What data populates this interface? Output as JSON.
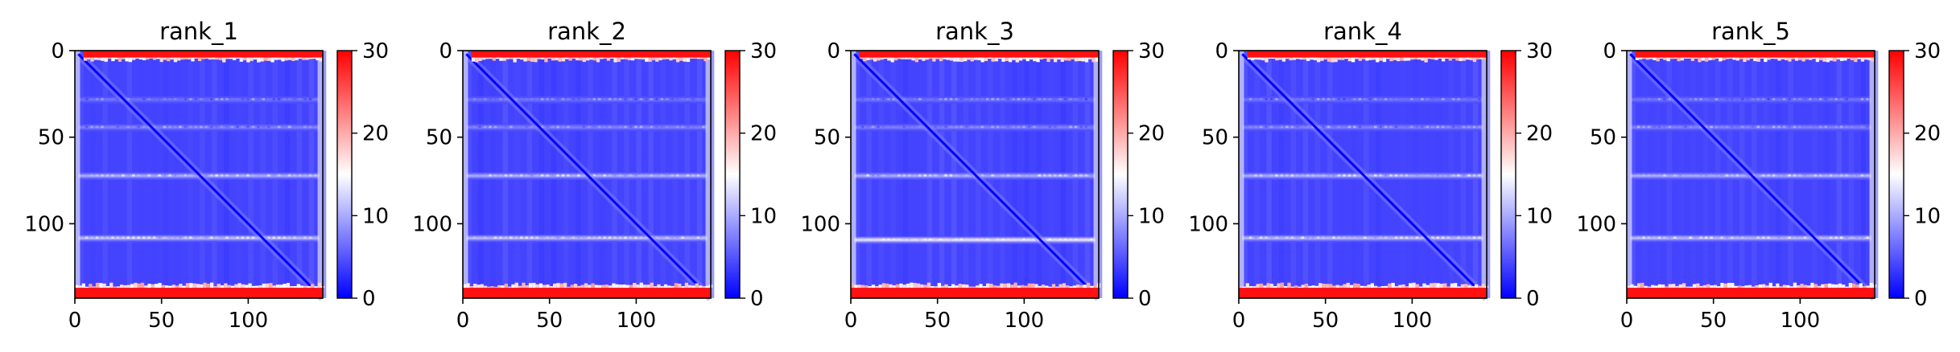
{
  "figure": {
    "colormap": "bwr",
    "colormap_stops": [
      "#0000ff",
      "#ffffff",
      "#ff0000"
    ]
  },
  "chart_data": [
    {
      "type": "heatmap",
      "title": "rank_1",
      "xlabel": "",
      "ylabel": "",
      "x_ticks": [
        0,
        50,
        100
      ],
      "y_ticks": [
        0,
        50,
        100
      ],
      "xlim": [
        0,
        143
      ],
      "ylim": [
        143,
        0
      ],
      "matrix_size": 143,
      "colorbar": {
        "min": 0,
        "max": 30,
        "ticks": [
          0,
          10,
          20,
          30
        ]
      },
      "features": {
        "diagonal_value": 0,
        "background_value": 4,
        "top_edge_rows": [
          0,
          4
        ],
        "top_edge_value": 29,
        "bottom_edge_rows": [
          137,
          143
        ],
        "bottom_edge_value": 29,
        "bright_bands": [
          {
            "row": 28,
            "value": 7
          },
          {
            "row": 44,
            "value": 8
          },
          {
            "row": 72,
            "value": 11
          },
          {
            "row": 108,
            "value": 12
          }
        ]
      }
    },
    {
      "type": "heatmap",
      "title": "rank_2",
      "xlabel": "",
      "ylabel": "",
      "x_ticks": [
        0,
        50,
        100
      ],
      "y_ticks": [
        0,
        50,
        100
      ],
      "xlim": [
        0,
        143
      ],
      "ylim": [
        143,
        0
      ],
      "matrix_size": 143,
      "colorbar": {
        "min": 0,
        "max": 30,
        "ticks": [
          0,
          10,
          20,
          30
        ]
      },
      "features": {
        "diagonal_value": 0,
        "background_value": 4,
        "top_edge_rows": [
          0,
          4
        ],
        "top_edge_value": 29,
        "bottom_edge_rows": [
          137,
          143
        ],
        "bottom_edge_value": 29,
        "bright_bands": [
          {
            "row": 28,
            "value": 7
          },
          {
            "row": 44,
            "value": 8
          },
          {
            "row": 72,
            "value": 11
          },
          {
            "row": 108,
            "value": 12
          }
        ]
      }
    },
    {
      "type": "heatmap",
      "title": "rank_3",
      "xlabel": "",
      "ylabel": "",
      "x_ticks": [
        0,
        50,
        100
      ],
      "y_ticks": [
        0,
        50,
        100
      ],
      "xlim": [
        0,
        143
      ],
      "ylim": [
        143,
        0
      ],
      "matrix_size": 143,
      "colorbar": {
        "min": 0,
        "max": 30,
        "ticks": [
          0,
          10,
          20,
          30
        ]
      },
      "features": {
        "diagonal_value": 0,
        "background_value": 4,
        "top_edge_rows": [
          0,
          4
        ],
        "top_edge_value": 29,
        "bottom_edge_rows": [
          137,
          143
        ],
        "bottom_edge_value": 29,
        "bright_bands": [
          {
            "row": 28,
            "value": 7
          },
          {
            "row": 44,
            "value": 8
          },
          {
            "row": 72,
            "value": 11
          },
          {
            "row": 109,
            "value": 15
          }
        ]
      }
    },
    {
      "type": "heatmap",
      "title": "rank_4",
      "xlabel": "",
      "ylabel": "",
      "x_ticks": [
        0,
        50,
        100
      ],
      "y_ticks": [
        0,
        50,
        100
      ],
      "xlim": [
        0,
        143
      ],
      "ylim": [
        143,
        0
      ],
      "matrix_size": 143,
      "colorbar": {
        "min": 0,
        "max": 30,
        "ticks": [
          0,
          10,
          20,
          30
        ]
      },
      "features": {
        "diagonal_value": 0,
        "background_value": 4,
        "top_edge_rows": [
          0,
          4
        ],
        "top_edge_value": 29,
        "bottom_edge_rows": [
          137,
          143
        ],
        "bottom_edge_value": 29,
        "bright_bands": [
          {
            "row": 28,
            "value": 7
          },
          {
            "row": 44,
            "value": 8
          },
          {
            "row": 72,
            "value": 11
          },
          {
            "row": 108,
            "value": 12
          }
        ]
      }
    },
    {
      "type": "heatmap",
      "title": "rank_5",
      "xlabel": "",
      "ylabel": "",
      "x_ticks": [
        0,
        50,
        100
      ],
      "y_ticks": [
        0,
        50,
        100
      ],
      "xlim": [
        0,
        143
      ],
      "ylim": [
        143,
        0
      ],
      "matrix_size": 143,
      "colorbar": {
        "min": 0,
        "max": 30,
        "ticks": [
          0,
          10,
          20,
          30
        ]
      },
      "features": {
        "diagonal_value": 0,
        "background_value": 4,
        "top_edge_rows": [
          0,
          4
        ],
        "top_edge_value": 29,
        "bottom_edge_rows": [
          137,
          143
        ],
        "bottom_edge_value": 29,
        "bright_bands": [
          {
            "row": 28,
            "value": 7
          },
          {
            "row": 44,
            "value": 8
          },
          {
            "row": 72,
            "value": 11
          },
          {
            "row": 108,
            "value": 12
          }
        ]
      }
    }
  ]
}
